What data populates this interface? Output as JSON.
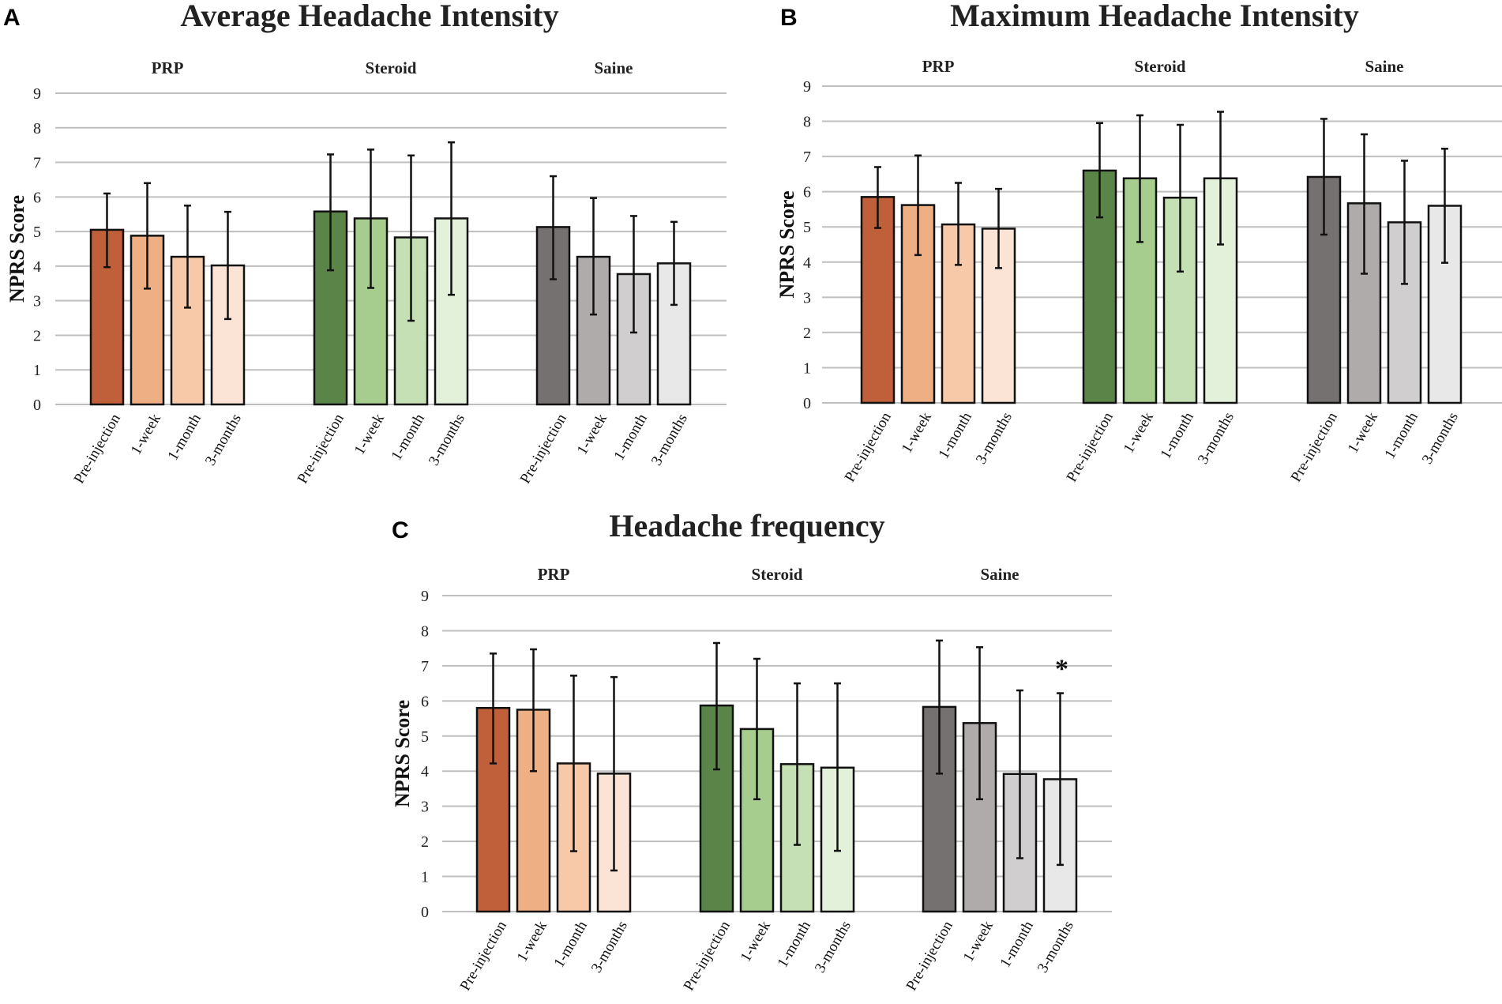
{
  "colors": {
    "PRP": [
      "#c0603a",
      "#eeaf85",
      "#f7c9a9",
      "#fbe3d6"
    ],
    "Steroid": [
      "#5a8448",
      "#a6cc8e",
      "#c5e0b5",
      "#e3f0da"
    ],
    "Saine": [
      "#767171",
      "#afabab",
      "#d0cece",
      "#e8e8e8"
    ],
    "grid": "#bfbfbf",
    "error_bar": "#111111",
    "bar_outline": "#111111"
  },
  "chart_data": [
    {
      "panel": "A",
      "type": "bar",
      "title": "Average Headache Intensity",
      "ylabel": "NPRS Score",
      "xlabel": "",
      "ylim": [
        0,
        9
      ],
      "yticks": [
        0,
        1,
        2,
        3,
        4,
        5,
        6,
        7,
        8,
        9
      ],
      "grid": true,
      "categories": [
        "Pre-injection",
        "1-week",
        "1-month",
        "3-months"
      ],
      "groups": [
        {
          "name": "PRP",
          "values": [
            5.05,
            4.88,
            4.27,
            4.02
          ],
          "error_low": [
            3.97,
            3.35,
            2.8,
            2.47
          ],
          "error_high": [
            6.1,
            6.4,
            5.75,
            5.57
          ]
        },
        {
          "name": "Steroid",
          "values": [
            5.58,
            5.38,
            4.83,
            5.38
          ],
          "error_low": [
            3.88,
            3.37,
            2.42,
            3.17
          ],
          "error_high": [
            7.23,
            7.37,
            7.2,
            7.58
          ]
        },
        {
          "name": "Saine",
          "values": [
            5.13,
            4.27,
            3.77,
            4.08
          ],
          "error_low": [
            3.62,
            2.6,
            2.08,
            2.88
          ],
          "error_high": [
            6.6,
            5.97,
            5.45,
            5.28
          ]
        }
      ],
      "annotations": []
    },
    {
      "panel": "B",
      "type": "bar",
      "title": "Maximum Headache Intensity",
      "ylabel": "NPRS Score",
      "xlabel": "",
      "ylim": [
        0,
        9
      ],
      "yticks": [
        0,
        1,
        2,
        3,
        4,
        5,
        6,
        7,
        8,
        9
      ],
      "grid": true,
      "categories": [
        "Pre-injection",
        "1-week",
        "1-month",
        "3-months"
      ],
      "groups": [
        {
          "name": "PRP",
          "values": [
            5.85,
            5.62,
            5.07,
            4.95
          ],
          "error_low": [
            4.97,
            4.2,
            3.92,
            3.83
          ],
          "error_high": [
            6.7,
            7.03,
            6.25,
            6.08
          ]
        },
        {
          "name": "Steroid",
          "values": [
            6.6,
            6.38,
            5.83,
            6.38
          ],
          "error_low": [
            5.27,
            4.57,
            3.73,
            4.5
          ],
          "error_high": [
            7.95,
            8.17,
            7.9,
            8.27
          ]
        },
        {
          "name": "Saine",
          "values": [
            6.42,
            5.67,
            5.13,
            5.6
          ],
          "error_low": [
            4.78,
            3.67,
            3.38,
            3.98
          ],
          "error_high": [
            8.07,
            7.63,
            6.88,
            7.22
          ]
        }
      ],
      "annotations": []
    },
    {
      "panel": "C",
      "type": "bar",
      "title": "Headache frequency",
      "ylabel": "NPRS Score",
      "xlabel": "",
      "ylim": [
        0,
        9
      ],
      "yticks": [
        0,
        1,
        2,
        3,
        4,
        5,
        6,
        7,
        8,
        9
      ],
      "grid": true,
      "categories": [
        "Pre-injection",
        "1-week",
        "1-month",
        "3-months"
      ],
      "groups": [
        {
          "name": "PRP",
          "values": [
            5.8,
            5.75,
            4.22,
            3.93
          ],
          "error_low": [
            4.22,
            4.0,
            1.72,
            1.17
          ],
          "error_high": [
            7.35,
            7.47,
            6.72,
            6.68
          ]
        },
        {
          "name": "Steroid",
          "values": [
            5.87,
            5.2,
            4.2,
            4.1
          ],
          "error_low": [
            4.05,
            3.2,
            1.9,
            1.73
          ],
          "error_high": [
            7.65,
            7.2,
            6.5,
            6.5
          ]
        },
        {
          "name": "Saine",
          "values": [
            5.83,
            5.37,
            3.92,
            3.77
          ],
          "error_low": [
            3.93,
            3.2,
            1.52,
            1.33
          ],
          "error_high": [
            7.72,
            7.53,
            6.3,
            6.22
          ]
        }
      ],
      "annotations": [
        {
          "group": "Saine",
          "category": "3-months",
          "text": "*"
        }
      ]
    }
  ]
}
